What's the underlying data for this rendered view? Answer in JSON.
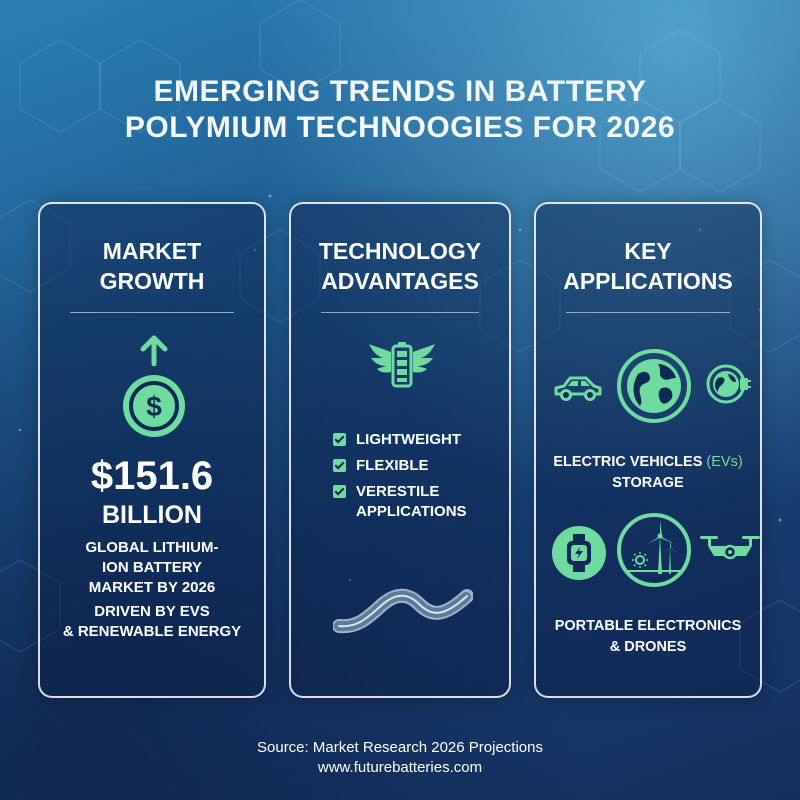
{
  "title": {
    "line1": "EMERGING TRENDS IN BATTERY",
    "line2": "POLYMIUM TECHNOOGIES FOR 2026"
  },
  "colors": {
    "accent": "#6fdba0",
    "card_border": "#ffffff",
    "background_top": "#2a7fb4",
    "background_bottom": "#142e5c"
  },
  "market_growth": {
    "title_line1": "MARKET",
    "title_line2": "GROWTH",
    "icons": [
      "arrow-up-icon",
      "dollar-coin-icon"
    ],
    "value": "$151.6",
    "unit": "BILLION",
    "description": [
      "GLOBAL LITHIUM-",
      "ION BATTERY",
      "MARKET BY 2026"
    ],
    "driver": [
      "DRIVEN BY EVS",
      "& RENEWABLE ENERGY"
    ]
  },
  "technology_advantages": {
    "title_line1": "TECHNOLOGY",
    "title_line2": "ADVANTAGES",
    "icons": [
      "winged-battery-icon",
      "flexible-battery-strip-icon"
    ],
    "items": [
      {
        "line1": "LIGHTWEIGHT",
        "line2": ""
      },
      {
        "line1": "FLEXIBLE",
        "line2": ""
      },
      {
        "line1": "VERESTILE",
        "line2": "APPLICATIONS"
      }
    ]
  },
  "key_applications": {
    "title_line1": "KEY",
    "title_line2": "APPLICATIONS",
    "icons": [
      "car-icon",
      "globe-icon",
      "globe-plug-icon",
      "smartwatch-icon",
      "wind-turbine-icon",
      "drone-icon"
    ],
    "ev_label_prefix": "ELECTRIC VEHICLES ",
    "ev_label_accent": "(EVs)",
    "ev_label_line2": "STORAGE",
    "portable_line1": "PORTABLE ELECTRONICS",
    "portable_line2": "& DRONES"
  },
  "source": {
    "line1": "Source: Market Research 2026 Projections",
    "line2": "www.futurebatteries.com"
  }
}
